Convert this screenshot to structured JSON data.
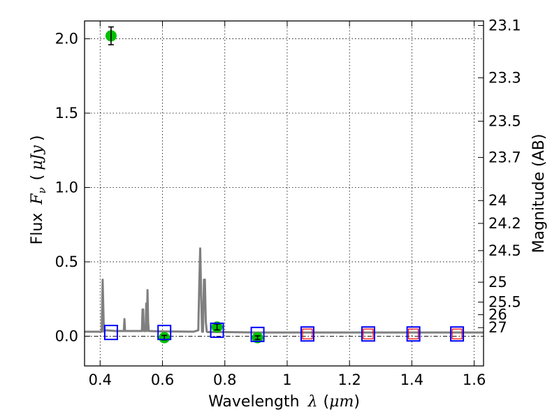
{
  "chart_data": {
    "type": "scatter",
    "xlabel": {
      "prefix": "Wavelength",
      "symbol": "λ",
      "open": "(",
      "unit": "μm",
      "close": ")"
    },
    "ylabel": {
      "prefix": "Flux",
      "symbol": "F",
      "subscript": "ν",
      "open": "(",
      "unit": "μJy",
      "close": ")"
    },
    "y2label": "Magnitude (AB)",
    "xlim": [
      0.35,
      1.63
    ],
    "ylim": [
      -0.2,
      2.12
    ],
    "grid": true,
    "x_ticks": [
      {
        "value": 0.4,
        "label": "0.4"
      },
      {
        "value": 0.6,
        "label": "0.6"
      },
      {
        "value": 0.8,
        "label": "0.8"
      },
      {
        "value": 1.0,
        "label": "1"
      },
      {
        "value": 1.2,
        "label": "1.2"
      },
      {
        "value": 1.4,
        "label": "1.4"
      },
      {
        "value": 1.6,
        "label": "1.6"
      }
    ],
    "y_ticks": [
      {
        "value": 0.0,
        "label": "0.0"
      },
      {
        "value": 0.5,
        "label": "0.5"
      },
      {
        "value": 1.0,
        "label": "1.0"
      },
      {
        "value": 1.5,
        "label": "1.5"
      },
      {
        "value": 2.0,
        "label": "2.0"
      }
    ],
    "mag_ticks": [
      {
        "mag": 23.1,
        "label": "23.1"
      },
      {
        "mag": 23.3,
        "label": "23.3"
      },
      {
        "mag": 23.5,
        "label": "23.5"
      },
      {
        "mag": 23.7,
        "label": "23.7"
      },
      {
        "mag": 24.0,
        "label": "24"
      },
      {
        "mag": 24.2,
        "label": "24.2"
      },
      {
        "mag": 24.5,
        "label": "24.5"
      },
      {
        "mag": 25.0,
        "label": "25"
      },
      {
        "mag": 25.5,
        "label": "25.5"
      },
      {
        "mag": 26.0,
        "label": "26"
      },
      {
        "mag": 27.0,
        "label": "27"
      }
    ],
    "series": [
      {
        "kind": "sed_model",
        "color": "#7f7f7f",
        "x": [
          0.35,
          0.405,
          0.408,
          0.41,
          0.412,
          0.415,
          0.45,
          0.476,
          0.478,
          0.48,
          0.5,
          0.534,
          0.536,
          0.538,
          0.54,
          0.546,
          0.548,
          0.55,
          0.552,
          0.554,
          0.556,
          0.6,
          0.7,
          0.715,
          0.718,
          0.721,
          0.724,
          0.727,
          0.73,
          0.733,
          0.736,
          0.739,
          0.742,
          0.745,
          0.8,
          0.9,
          1.0,
          1.1,
          1.2,
          1.3,
          1.4,
          1.5,
          1.63
        ],
        "y": [
          0.03,
          0.03,
          0.38,
          0.2,
          0.03,
          0.04,
          0.035,
          0.035,
          0.115,
          0.035,
          0.035,
          0.035,
          0.18,
          0.18,
          0.035,
          0.035,
          0.22,
          0.035,
          0.31,
          0.1,
          0.035,
          0.032,
          0.03,
          0.04,
          0.35,
          0.59,
          0.3,
          0.03,
          0.03,
          0.38,
          0.38,
          0.1,
          0.03,
          0.028,
          0.028,
          0.025,
          0.025,
          0.025,
          0.025,
          0.025,
          0.025,
          0.025,
          0.025
        ]
      },
      {
        "kind": "observed_photometry",
        "color": "#00bf00",
        "points": [
          {
            "x": 0.435,
            "y": 2.02,
            "yerr": 0.06
          },
          {
            "x": 0.606,
            "y": -0.01,
            "yerr": 0.015
          },
          {
            "x": 0.775,
            "y": 0.062,
            "yerr": 0.02
          },
          {
            "x": 0.905,
            "y": -0.01,
            "yerr": 0.012
          }
        ]
      },
      {
        "kind": "model_photometry",
        "color": "#0000ff",
        "points": [
          {
            "x": 0.435,
            "y": 0.025
          },
          {
            "x": 0.606,
            "y": 0.025
          },
          {
            "x": 0.775,
            "y": 0.04
          },
          {
            "x": 0.905,
            "y": 0.012
          },
          {
            "x": 1.065,
            "y": 0.015
          },
          {
            "x": 1.26,
            "y": 0.015
          },
          {
            "x": 1.405,
            "y": 0.015
          },
          {
            "x": 1.545,
            "y": 0.015
          }
        ]
      },
      {
        "kind": "upper_limits",
        "color": "#ff0000",
        "points": [
          {
            "x": 1.065,
            "y": 0.015
          },
          {
            "x": 1.26,
            "y": 0.015
          },
          {
            "x": 1.405,
            "y": 0.015
          },
          {
            "x": 1.545,
            "y": 0.015
          }
        ]
      }
    ]
  }
}
